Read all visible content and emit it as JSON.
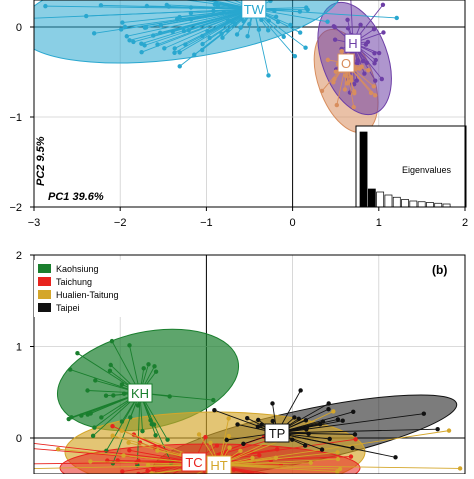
{
  "chart_data": [
    {
      "type": "scatter",
      "panel": "a",
      "xlim": [
        -3,
        2
      ],
      "ylim": [
        -2,
        0.3
      ],
      "x_ticks": [
        "−3",
        "−2",
        "−1",
        "0",
        "1",
        "2"
      ],
      "y_ticks": [
        "−2",
        "−1",
        "0"
      ],
      "axis_annotations": [
        "PC1 39.6%",
        "PC2 9.5%"
      ],
      "groups": [
        {
          "label": "TW",
          "color": "#29a7cf",
          "centroid": [
            -0.45,
            0.2
          ],
          "ellipse": {
            "cx": -1.3,
            "cy": 0.2,
            "rx": 1.9,
            "ry": 0.55,
            "angle": -8
          }
        },
        {
          "label": "H",
          "color": "#6d3fa6",
          "centroid": [
            0.7,
            -0.18
          ],
          "ellipse": {
            "cx": 0.72,
            "cy": -0.35,
            "rx": 0.38,
            "ry": 0.65,
            "angle": -20
          }
        },
        {
          "label": "O",
          "color": "#d88e5e",
          "centroid": [
            0.62,
            -0.4
          ],
          "ellipse": {
            "cx": 0.62,
            "cy": -0.6,
            "rx": 0.32,
            "ry": 0.6,
            "angle": -20
          }
        }
      ],
      "inset": {
        "title": "Eigenvalues",
        "bars": [
          1.0,
          0.24,
          0.2,
          0.16,
          0.13,
          0.1,
          0.08,
          0.07,
          0.06,
          0.05,
          0.04
        ]
      }
    },
    {
      "type": "scatter",
      "panel": "b",
      "panel_label": "(b)",
      "xlim": [
        -3,
        2
      ],
      "ylim": [
        -0.3,
        2
      ],
      "y_ticks": [
        "0",
        "1",
        "2"
      ],
      "legend": {
        "position": "top-left",
        "entries": [
          {
            "name": "Kaohsiung",
            "color": "#1a7f2e"
          },
          {
            "name": "Taichung",
            "color": "#e8231e"
          },
          {
            "name": "Hualien-Taitung",
            "color": "#d4a62a"
          },
          {
            "name": "Taipei",
            "color": "#111111"
          }
        ]
      },
      "groups": [
        {
          "label": "KH",
          "color": "#1a7f2e",
          "centroid": [
            -2.2,
            0.48
          ]
        },
        {
          "label": "TP",
          "color": "#111111",
          "centroid": [
            -0.1,
            0.04
          ]
        },
        {
          "label": "TC",
          "color": "#e8231e",
          "centroid": [
            -1.1,
            -0.26
          ]
        },
        {
          "label": "HT",
          "color": "#d4a62a",
          "centroid": [
            -0.85,
            -0.28
          ]
        }
      ]
    }
  ]
}
